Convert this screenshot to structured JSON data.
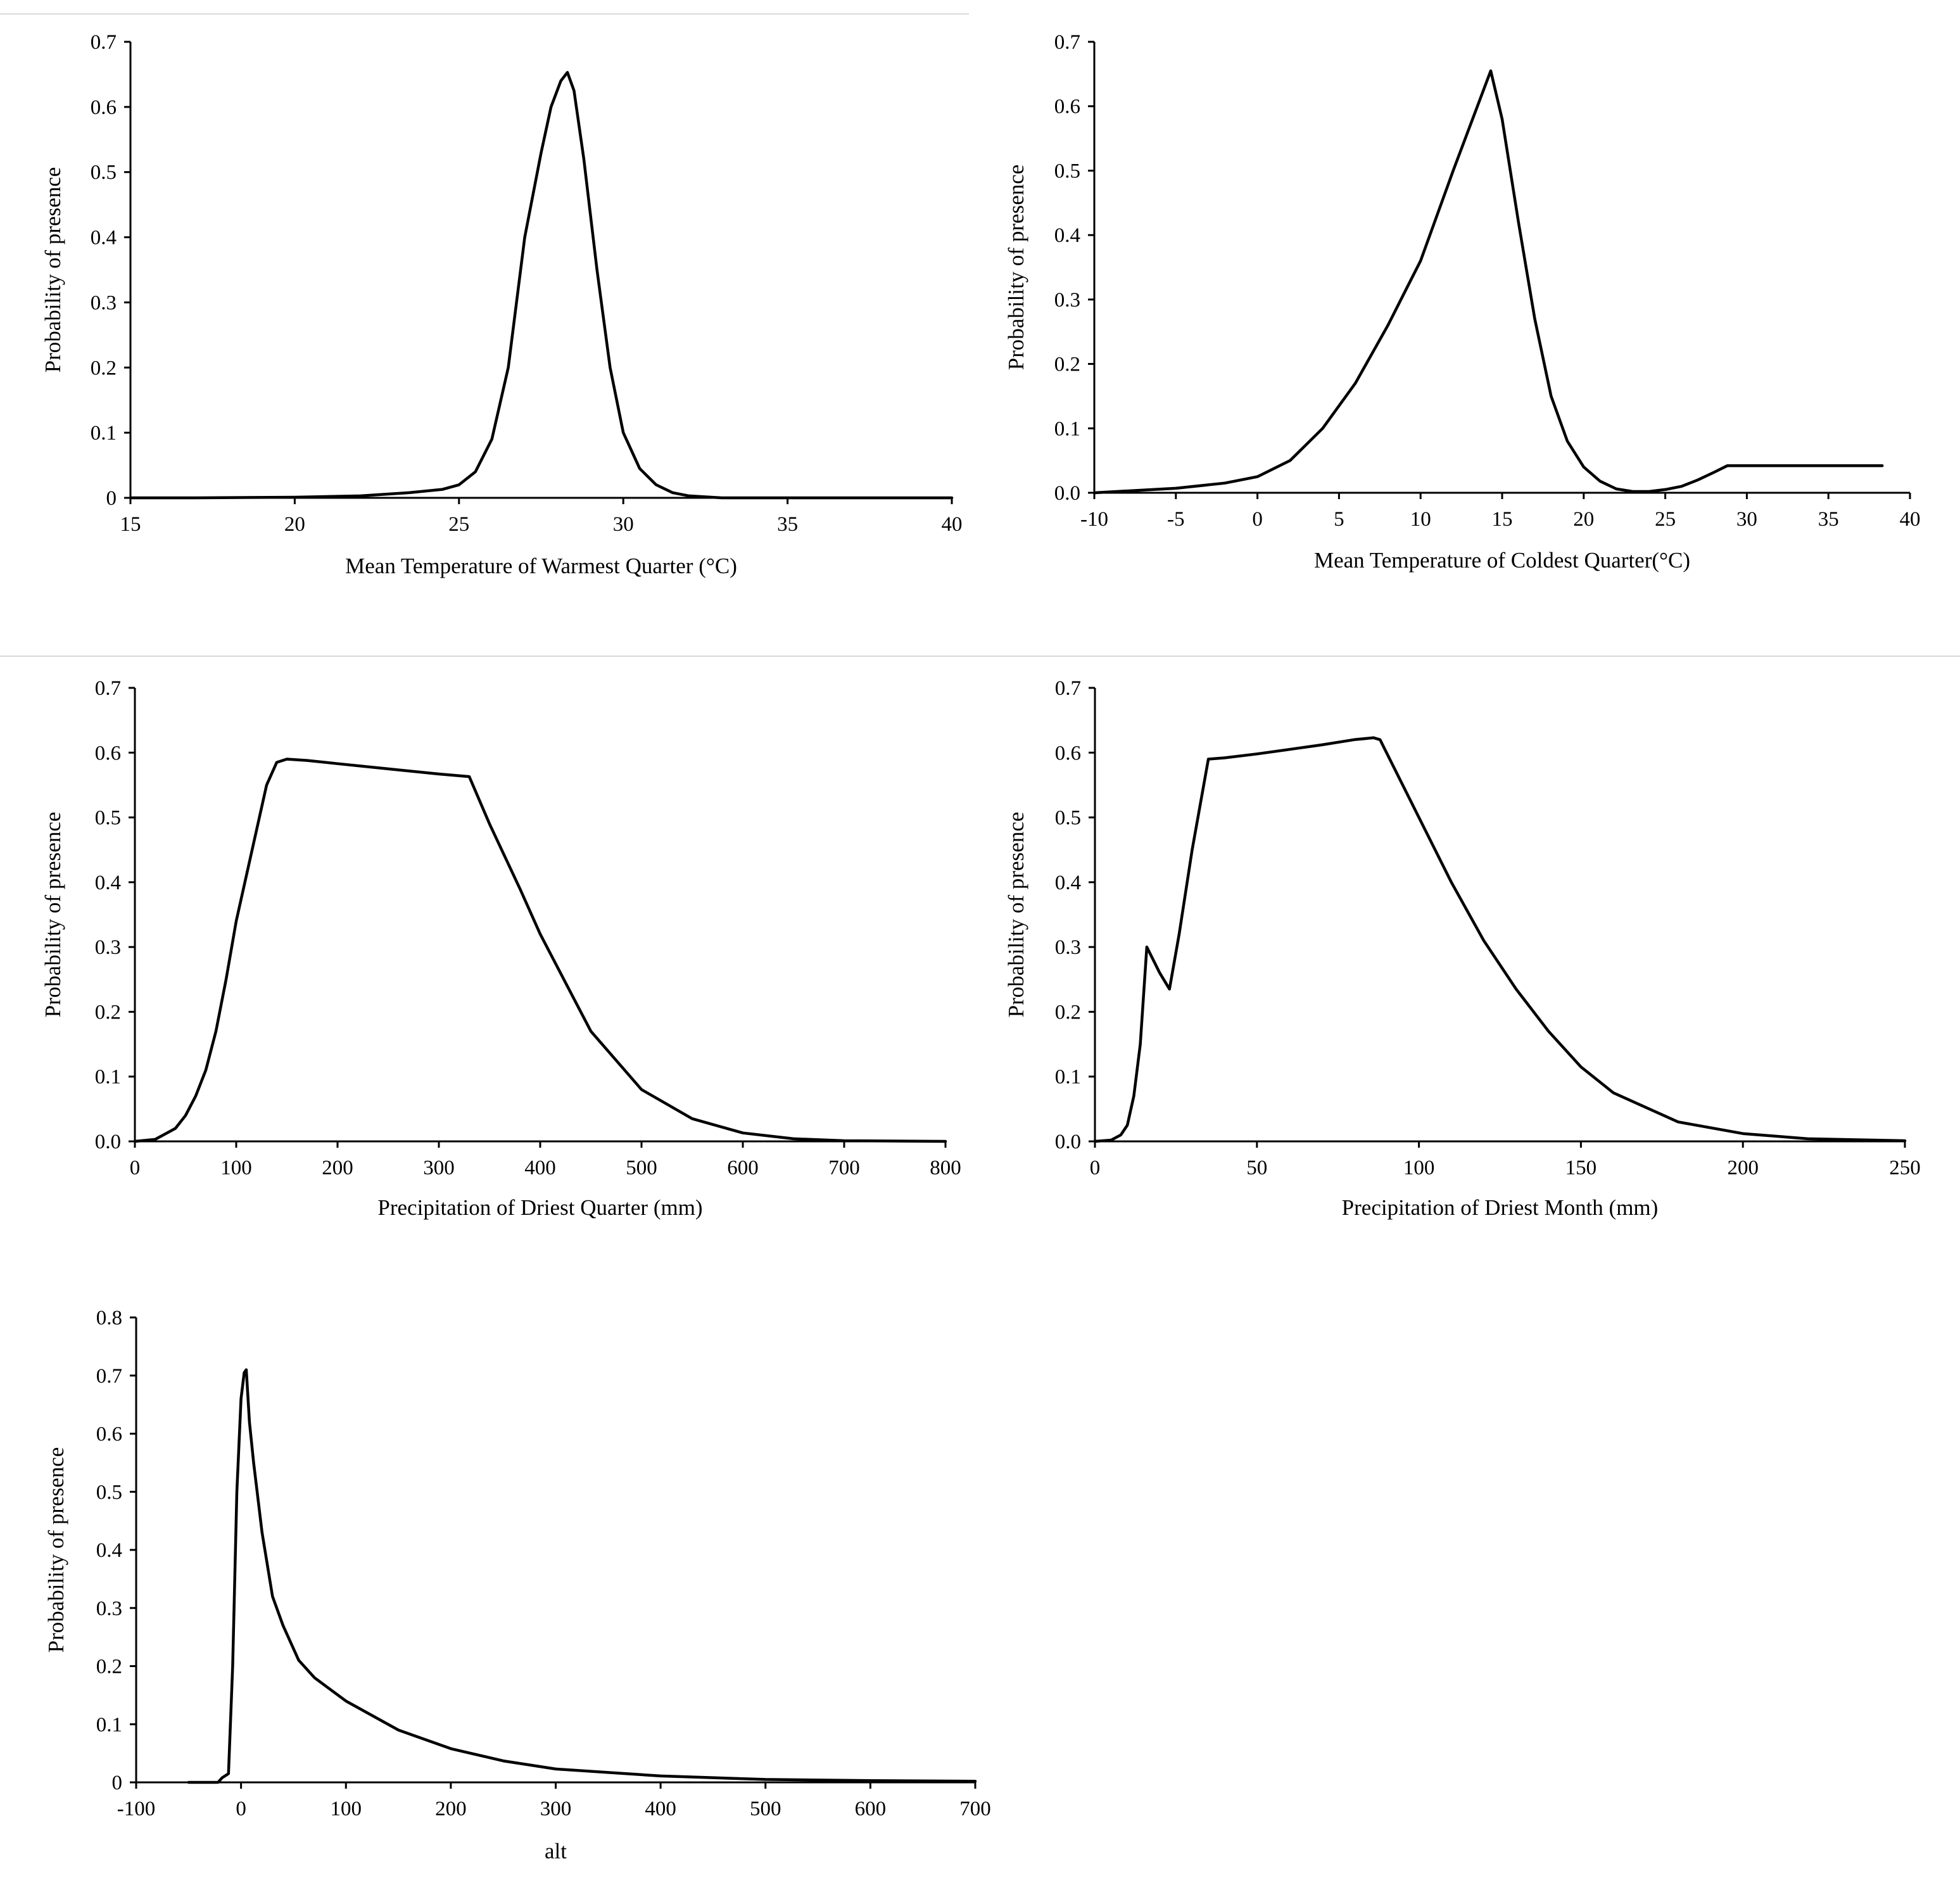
{
  "chart_data": [
    {
      "type": "line",
      "xlabel": "Mean Temperature of Warmest Quarter (°C)",
      "ylabel": "Probability of presence",
      "xlim": [
        15,
        40
      ],
      "ylim": [
        0,
        0.7
      ],
      "x_ticks": [
        "15",
        "20",
        "25",
        "30",
        "35",
        "40"
      ],
      "y_ticks": [
        "0",
        "0.1",
        "0.2",
        "0.3",
        "0.4",
        "0.5",
        "0.6",
        "0.7"
      ],
      "grid": false,
      "series": [
        {
          "x": [
            15,
            17,
            20,
            22,
            23.5,
            24.5,
            25,
            25.5,
            26,
            26.5,
            27,
            27.5,
            27.8,
            28.1,
            28.3,
            28.5,
            28.8,
            29.2,
            29.6,
            30,
            30.5,
            31,
            31.5,
            32,
            33,
            35,
            40
          ],
          "y": [
            0,
            0,
            0.001,
            0.003,
            0.008,
            0.013,
            0.02,
            0.04,
            0.09,
            0.2,
            0.4,
            0.53,
            0.6,
            0.64,
            0.653,
            0.625,
            0.52,
            0.35,
            0.2,
            0.1,
            0.045,
            0.02,
            0.008,
            0.003,
            0,
            0,
            0
          ]
        }
      ]
    },
    {
      "type": "line",
      "xlabel": "Mean Temperature of Coldest Quarter(°C)",
      "ylabel": "Probability of presence",
      "xlim": [
        -10,
        40
      ],
      "ylim": [
        0,
        0.7
      ],
      "x_ticks": [
        "-10",
        "-5",
        "0",
        "5",
        "10",
        "15",
        "20",
        "25",
        "30",
        "35",
        "40"
      ],
      "y_ticks": [
        "0.0",
        "0.1",
        "0.2",
        "0.3",
        "0.4",
        "0.5",
        "0.6",
        "0.7"
      ],
      "grid": false,
      "series": [
        {
          "x": [
            -10,
            -5,
            -2,
            0,
            2,
            4,
            6,
            8,
            9,
            10,
            12,
            14.3,
            15,
            16,
            17,
            18,
            19,
            20,
            21,
            22,
            23,
            24,
            25,
            26,
            27,
            28,
            28.8,
            30,
            35,
            38.3
          ],
          "y": [
            0,
            0.007,
            0.015,
            0.025,
            0.05,
            0.1,
            0.17,
            0.26,
            0.31,
            0.36,
            0.5,
            0.655,
            0.58,
            0.42,
            0.27,
            0.15,
            0.08,
            0.04,
            0.018,
            0.006,
            0.002,
            0.002,
            0.005,
            0.01,
            0.02,
            0.032,
            0.042,
            0.042,
            0.042,
            0.042
          ]
        }
      ]
    },
    {
      "type": "line",
      "xlabel": "Precipitation of Driest Quarter (mm)",
      "ylabel": "Probability of presence",
      "xlim": [
        0,
        800
      ],
      "ylim": [
        0,
        0.7
      ],
      "x_ticks": [
        "0",
        "100",
        "200",
        "300",
        "400",
        "500",
        "600",
        "700",
        "800"
      ],
      "y_ticks": [
        "0.0",
        "0.1",
        "0.2",
        "0.3",
        "0.4",
        "0.5",
        "0.6",
        "0.7"
      ],
      "grid": false,
      "series": [
        {
          "x": [
            0,
            20,
            40,
            50,
            60,
            70,
            80,
            90,
            100,
            110,
            120,
            130,
            140,
            150,
            170,
            200,
            250,
            300,
            330,
            350,
            380,
            400,
            450,
            500,
            550,
            600,
            650,
            700,
            800
          ],
          "y": [
            0,
            0.003,
            0.02,
            0.04,
            0.07,
            0.11,
            0.17,
            0.25,
            0.34,
            0.41,
            0.48,
            0.55,
            0.585,
            0.59,
            0.588,
            0.583,
            0.575,
            0.567,
            0.563,
            0.49,
            0.39,
            0.32,
            0.17,
            0.08,
            0.035,
            0.013,
            0.004,
            0.001,
            0
          ]
        }
      ]
    },
    {
      "type": "line",
      "xlabel": "Precipitation of Driest Month (mm)",
      "ylabel": "Probability of presence",
      "xlim": [
        0,
        250
      ],
      "ylim": [
        0,
        0.7
      ],
      "x_ticks": [
        "0",
        "50",
        "100",
        "150",
        "200",
        "250"
      ],
      "y_ticks": [
        "0.0",
        "0.1",
        "0.2",
        "0.3",
        "0.4",
        "0.5",
        "0.6",
        "0.7"
      ],
      "grid": false,
      "series": [
        {
          "x": [
            0,
            5,
            8,
            10,
            12,
            14,
            16,
            18,
            20,
            23,
            26,
            30,
            35,
            40,
            50,
            60,
            70,
            80,
            86,
            88,
            90,
            100,
            110,
            120,
            130,
            140,
            150,
            160,
            180,
            200,
            220,
            250
          ],
          "y": [
            0,
            0.002,
            0.01,
            0.025,
            0.07,
            0.15,
            0.3,
            0.28,
            0.26,
            0.235,
            0.32,
            0.45,
            0.59,
            0.592,
            0.598,
            0.605,
            0.612,
            0.62,
            0.623,
            0.62,
            0.6,
            0.5,
            0.4,
            0.31,
            0.235,
            0.17,
            0.115,
            0.075,
            0.03,
            0.012,
            0.004,
            0.001
          ]
        }
      ]
    },
    {
      "type": "line",
      "xlabel": "alt",
      "ylabel": "Probability of presence",
      "xlim": [
        -100,
        700
      ],
      "ylim": [
        0,
        0.8
      ],
      "x_ticks": [
        "-100",
        "0",
        "100",
        "200",
        "300",
        "400",
        "500",
        "600",
        "700"
      ],
      "y_ticks": [
        "0",
        "0.1",
        "0.2",
        "0.3",
        "0.4",
        "0.5",
        "0.6",
        "0.7",
        "0.8"
      ],
      "grid": false,
      "series": [
        {
          "x": [
            -50,
            -22,
            -18,
            -12,
            -8,
            -4,
            0,
            3,
            5,
            8,
            12,
            20,
            30,
            40,
            55,
            70,
            100,
            150,
            200,
            250,
            300,
            400,
            500,
            600,
            700
          ],
          "y": [
            0,
            0,
            0.008,
            0.015,
            0.2,
            0.5,
            0.66,
            0.705,
            0.71,
            0.62,
            0.55,
            0.43,
            0.32,
            0.27,
            0.21,
            0.18,
            0.14,
            0.09,
            0.058,
            0.037,
            0.023,
            0.011,
            0.005,
            0.003,
            0.002
          ]
        }
      ]
    }
  ]
}
